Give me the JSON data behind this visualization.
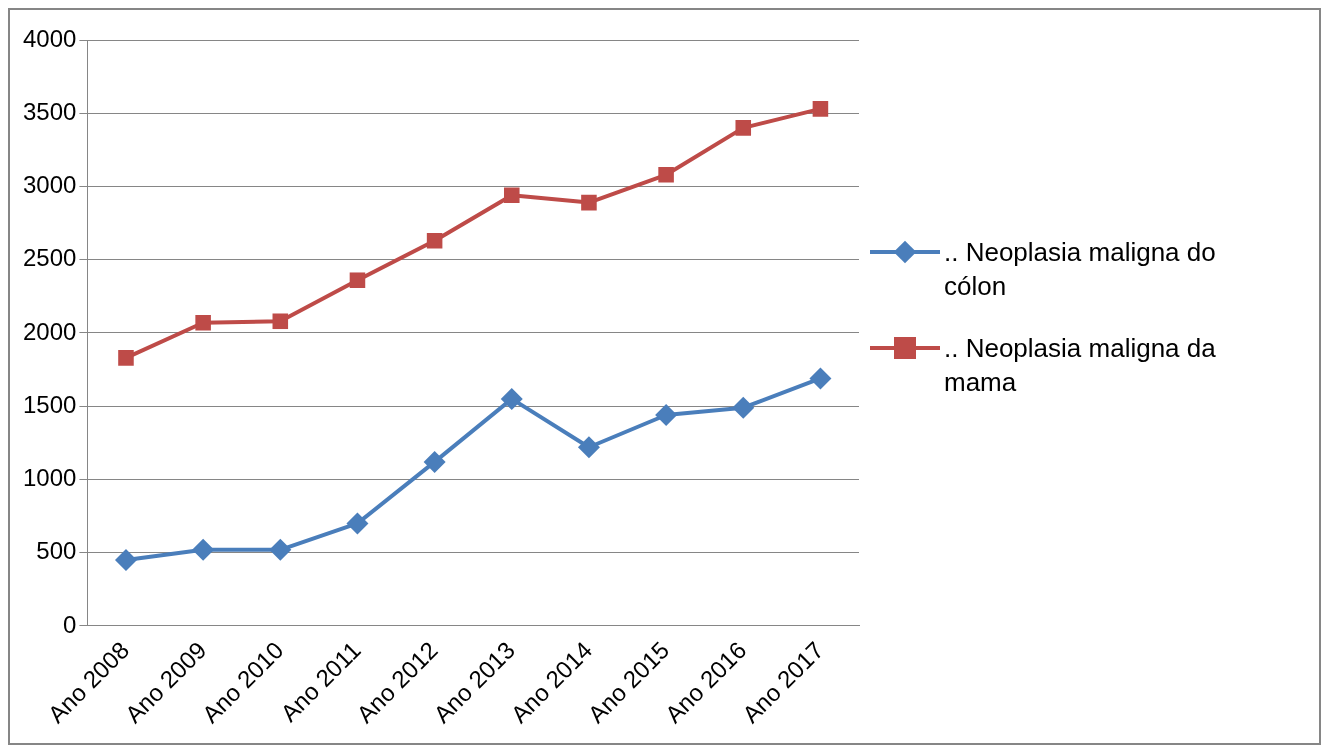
{
  "chart_data": {
    "type": "line",
    "categories": [
      "Ano 2008",
      "Ano 2009",
      "Ano 2010",
      "Ano 2011",
      "Ano 2012",
      "Ano 2013",
      "Ano 2014",
      "Ano 2015",
      "Ano 2016",
      "Ano 2017"
    ],
    "series": [
      {
        "name": ".. Neoplasia maligna do cólon",
        "color": "#4a7ebb",
        "marker": "diamond",
        "values": [
          450,
          520,
          520,
          700,
          1120,
          1550,
          1220,
          1440,
          1490,
          1690
        ]
      },
      {
        "name": ".. Neoplasia maligna da mama",
        "color": "#be4b48",
        "marker": "square",
        "values": [
          1830,
          2070,
          2080,
          2360,
          2630,
          2940,
          2890,
          3080,
          3400,
          3530
        ]
      }
    ],
    "ylim": [
      0,
      4000
    ],
    "yticks": [
      0,
      500,
      1000,
      1500,
      2000,
      2500,
      3000,
      3500,
      4000
    ],
    "grid": "y",
    "legend": "right",
    "line_style": "solid"
  }
}
